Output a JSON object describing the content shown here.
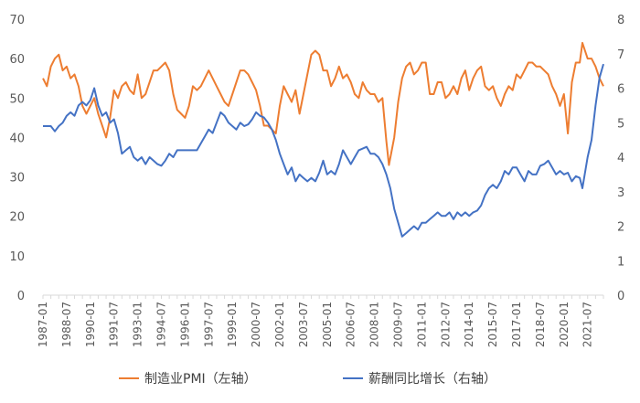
{
  "chart_data": {
    "type": "line",
    "xlabel": "",
    "ylabel_left": "",
    "ylabel_right": "",
    "x_tick_labels": [
      "1987-01",
      "1988-07",
      "1990-01",
      "1991-07",
      "1993-01",
      "1994-07",
      "1996-01",
      "1997-07",
      "1999-01",
      "2000-07",
      "2002-01",
      "2003-07",
      "2005-01",
      "2006-07",
      "2008-01",
      "2009-07",
      "2011-01",
      "2012-07",
      "2014-01",
      "2015-07",
      "2017-01",
      "2018-07",
      "2020-01",
      "2021-07"
    ],
    "y_left": {
      "min": 0,
      "max": 70,
      "ticks": [
        "0",
        "10",
        "20",
        "30",
        "40",
        "50",
        "60",
        "70"
      ]
    },
    "y_right": {
      "min": 0,
      "max": 8,
      "ticks": [
        "0",
        "1",
        "2",
        "3",
        "4",
        "5",
        "6",
        "7",
        "8"
      ]
    },
    "grid": false,
    "legend_position": "bottom",
    "series": [
      {
        "name": "制造业PMI（左轴）",
        "axis": "left",
        "color": "#ED7D31",
        "points": [
          [
            "1987-01",
            55
          ],
          [
            "1987-04",
            53
          ],
          [
            "1987-07",
            58
          ],
          [
            "1987-10",
            60
          ],
          [
            "1988-01",
            61
          ],
          [
            "1988-04",
            57
          ],
          [
            "1988-07",
            58
          ],
          [
            "1988-10",
            55
          ],
          [
            "1989-01",
            56
          ],
          [
            "1989-04",
            53
          ],
          [
            "1989-07",
            48
          ],
          [
            "1989-10",
            46
          ],
          [
            "1990-01",
            48
          ],
          [
            "1990-04",
            50
          ],
          [
            "1990-07",
            46
          ],
          [
            "1990-10",
            43
          ],
          [
            "1991-01",
            40
          ],
          [
            "1991-04",
            45
          ],
          [
            "1991-07",
            52
          ],
          [
            "1991-10",
            50
          ],
          [
            "1992-01",
            53
          ],
          [
            "1992-04",
            54
          ],
          [
            "1992-07",
            52
          ],
          [
            "1992-10",
            51
          ],
          [
            "1993-01",
            56
          ],
          [
            "1993-04",
            50
          ],
          [
            "1993-07",
            51
          ],
          [
            "1993-10",
            54
          ],
          [
            "1994-01",
            57
          ],
          [
            "1994-04",
            57
          ],
          [
            "1994-07",
            58
          ],
          [
            "1994-10",
            59
          ],
          [
            "1995-01",
            57
          ],
          [
            "1995-04",
            51
          ],
          [
            "1995-07",
            47
          ],
          [
            "1995-10",
            46
          ],
          [
            "1996-01",
            45
          ],
          [
            "1996-04",
            48
          ],
          [
            "1996-07",
            53
          ],
          [
            "1996-10",
            52
          ],
          [
            "1997-01",
            53
          ],
          [
            "1997-04",
            55
          ],
          [
            "1997-07",
            57
          ],
          [
            "1997-10",
            55
          ],
          [
            "1998-01",
            53
          ],
          [
            "1998-04",
            51
          ],
          [
            "1998-07",
            49
          ],
          [
            "1998-10",
            48
          ],
          [
            "1999-01",
            51
          ],
          [
            "1999-04",
            54
          ],
          [
            "1999-07",
            57
          ],
          [
            "1999-10",
            57
          ],
          [
            "2000-01",
            56
          ],
          [
            "2000-04",
            54
          ],
          [
            "2000-07",
            52
          ],
          [
            "2000-10",
            48
          ],
          [
            "2001-01",
            43
          ],
          [
            "2001-04",
            43
          ],
          [
            "2001-07",
            42
          ],
          [
            "2001-10",
            41
          ],
          [
            "2002-01",
            48
          ],
          [
            "2002-04",
            53
          ],
          [
            "2002-07",
            51
          ],
          [
            "2002-10",
            49
          ],
          [
            "2003-01",
            52
          ],
          [
            "2003-04",
            46
          ],
          [
            "2003-07",
            51
          ],
          [
            "2003-10",
            56
          ],
          [
            "2004-01",
            61
          ],
          [
            "2004-04",
            62
          ],
          [
            "2004-07",
            61
          ],
          [
            "2004-10",
            57
          ],
          [
            "2005-01",
            57
          ],
          [
            "2005-04",
            53
          ],
          [
            "2005-07",
            55
          ],
          [
            "2005-10",
            58
          ],
          [
            "2006-01",
            55
          ],
          [
            "2006-04",
            56
          ],
          [
            "2006-07",
            54
          ],
          [
            "2006-10",
            51
          ],
          [
            "2007-01",
            50
          ],
          [
            "2007-04",
            54
          ],
          [
            "2007-07",
            52
          ],
          [
            "2007-10",
            51
          ],
          [
            "2008-01",
            51
          ],
          [
            "2008-04",
            49
          ],
          [
            "2008-07",
            50
          ],
          [
            "2008-10",
            39
          ],
          [
            "2008-12",
            33
          ],
          [
            "2009-04",
            40
          ],
          [
            "2009-07",
            49
          ],
          [
            "2009-10",
            55
          ],
          [
            "2010-01",
            58
          ],
          [
            "2010-04",
            59
          ],
          [
            "2010-07",
            56
          ],
          [
            "2010-10",
            57
          ],
          [
            "2011-01",
            59
          ],
          [
            "2011-04",
            59
          ],
          [
            "2011-07",
            51
          ],
          [
            "2011-10",
            51
          ],
          [
            "2012-01",
            54
          ],
          [
            "2012-04",
            54
          ],
          [
            "2012-07",
            50
          ],
          [
            "2012-10",
            51
          ],
          [
            "2013-01",
            53
          ],
          [
            "2013-04",
            51
          ],
          [
            "2013-07",
            55
          ],
          [
            "2013-10",
            57
          ],
          [
            "2014-01",
            52
          ],
          [
            "2014-04",
            55
          ],
          [
            "2014-07",
            57
          ],
          [
            "2014-10",
            58
          ],
          [
            "2015-01",
            53
          ],
          [
            "2015-04",
            52
          ],
          [
            "2015-07",
            53
          ],
          [
            "2015-10",
            50
          ],
          [
            "2016-01",
            48
          ],
          [
            "2016-04",
            51
          ],
          [
            "2016-07",
            53
          ],
          [
            "2016-10",
            52
          ],
          [
            "2017-01",
            56
          ],
          [
            "2017-04",
            55
          ],
          [
            "2017-07",
            57
          ],
          [
            "2017-10",
            59
          ],
          [
            "2018-01",
            59
          ],
          [
            "2018-04",
            58
          ],
          [
            "2018-07",
            58
          ],
          [
            "2018-10",
            57
          ],
          [
            "2019-01",
            56
          ],
          [
            "2019-04",
            53
          ],
          [
            "2019-07",
            51
          ],
          [
            "2019-10",
            48
          ],
          [
            "2020-01",
            51
          ],
          [
            "2020-04",
            41
          ],
          [
            "2020-07",
            54
          ],
          [
            "2020-10",
            59
          ],
          [
            "2021-01",
            59
          ],
          [
            "2021-03",
            64
          ],
          [
            "2021-07",
            60
          ],
          [
            "2021-10",
            60
          ],
          [
            "2022-01",
            58
          ],
          [
            "2022-04",
            55
          ],
          [
            "2022-07",
            53
          ]
        ]
      },
      {
        "name": "薪酬同比增长（右轴）",
        "axis": "right",
        "color": "#4472C4",
        "points": [
          [
            "1987-01",
            4.9
          ],
          [
            "1987-04",
            4.9
          ],
          [
            "1987-07",
            4.9
          ],
          [
            "1987-10",
            4.75
          ],
          [
            "1988-01",
            4.9
          ],
          [
            "1988-04",
            5.0
          ],
          [
            "1988-07",
            5.2
          ],
          [
            "1988-10",
            5.3
          ],
          [
            "1989-01",
            5.2
          ],
          [
            "1989-04",
            5.5
          ],
          [
            "1989-07",
            5.6
          ],
          [
            "1989-10",
            5.5
          ],
          [
            "1990-01",
            5.65
          ],
          [
            "1990-04",
            6.0
          ],
          [
            "1990-07",
            5.5
          ],
          [
            "1990-10",
            5.2
          ],
          [
            "1991-01",
            5.3
          ],
          [
            "1991-04",
            5.0
          ],
          [
            "1991-07",
            5.1
          ],
          [
            "1991-10",
            4.7
          ],
          [
            "1992-01",
            4.1
          ],
          [
            "1992-04",
            4.2
          ],
          [
            "1992-07",
            4.3
          ],
          [
            "1992-10",
            4.0
          ],
          [
            "1993-01",
            3.9
          ],
          [
            "1993-04",
            4.0
          ],
          [
            "1993-07",
            3.8
          ],
          [
            "1993-10",
            4.0
          ],
          [
            "1994-01",
            3.9
          ],
          [
            "1994-04",
            3.8
          ],
          [
            "1994-07",
            3.75
          ],
          [
            "1994-10",
            3.9
          ],
          [
            "1995-01",
            4.1
          ],
          [
            "1995-04",
            4.0
          ],
          [
            "1995-07",
            4.2
          ],
          [
            "1995-10",
            4.2
          ],
          [
            "1996-01",
            4.2
          ],
          [
            "1996-04",
            4.2
          ],
          [
            "1996-07",
            4.2
          ],
          [
            "1996-10",
            4.2
          ],
          [
            "1997-01",
            4.4
          ],
          [
            "1997-04",
            4.6
          ],
          [
            "1997-07",
            4.8
          ],
          [
            "1997-10",
            4.7
          ],
          [
            "1998-01",
            5.0
          ],
          [
            "1998-04",
            5.3
          ],
          [
            "1998-07",
            5.2
          ],
          [
            "1998-10",
            5.0
          ],
          [
            "1999-01",
            4.9
          ],
          [
            "1999-04",
            4.8
          ],
          [
            "1999-07",
            5.0
          ],
          [
            "1999-10",
            4.9
          ],
          [
            "2000-01",
            4.95
          ],
          [
            "2000-04",
            5.1
          ],
          [
            "2000-07",
            5.3
          ],
          [
            "2000-10",
            5.2
          ],
          [
            "2001-01",
            5.15
          ],
          [
            "2001-04",
            5.0
          ],
          [
            "2001-07",
            4.8
          ],
          [
            "2001-10",
            4.5
          ],
          [
            "2002-01",
            4.1
          ],
          [
            "2002-04",
            3.8
          ],
          [
            "2002-07",
            3.5
          ],
          [
            "2002-10",
            3.7
          ],
          [
            "2003-01",
            3.3
          ],
          [
            "2003-04",
            3.5
          ],
          [
            "2003-07",
            3.4
          ],
          [
            "2003-10",
            3.3
          ],
          [
            "2004-01",
            3.4
          ],
          [
            "2004-04",
            3.3
          ],
          [
            "2004-07",
            3.55
          ],
          [
            "2004-10",
            3.9
          ],
          [
            "2005-01",
            3.5
          ],
          [
            "2005-04",
            3.6
          ],
          [
            "2005-07",
            3.5
          ],
          [
            "2005-10",
            3.8
          ],
          [
            "2006-01",
            4.2
          ],
          [
            "2006-04",
            4.0
          ],
          [
            "2006-07",
            3.8
          ],
          [
            "2006-10",
            4.0
          ],
          [
            "2007-01",
            4.2
          ],
          [
            "2007-04",
            4.25
          ],
          [
            "2007-07",
            4.3
          ],
          [
            "2007-10",
            4.1
          ],
          [
            "2008-01",
            4.1
          ],
          [
            "2008-04",
            4.0
          ],
          [
            "2008-07",
            3.8
          ],
          [
            "2008-10",
            3.5
          ],
          [
            "2009-01",
            3.1
          ],
          [
            "2009-04",
            2.5
          ],
          [
            "2009-07",
            2.1
          ],
          [
            "2009-10",
            1.7
          ],
          [
            "2010-01",
            1.8
          ],
          [
            "2010-04",
            1.9
          ],
          [
            "2010-07",
            2.0
          ],
          [
            "2010-10",
            1.9
          ],
          [
            "2011-01",
            2.1
          ],
          [
            "2011-04",
            2.1
          ],
          [
            "2011-07",
            2.2
          ],
          [
            "2011-10",
            2.3
          ],
          [
            "2012-01",
            2.4
          ],
          [
            "2012-04",
            2.3
          ],
          [
            "2012-07",
            2.3
          ],
          [
            "2012-10",
            2.4
          ],
          [
            "2013-01",
            2.2
          ],
          [
            "2013-04",
            2.4
          ],
          [
            "2013-07",
            2.3
          ],
          [
            "2013-10",
            2.4
          ],
          [
            "2014-01",
            2.3
          ],
          [
            "2014-04",
            2.4
          ],
          [
            "2014-07",
            2.45
          ],
          [
            "2014-10",
            2.6
          ],
          [
            "2015-01",
            2.9
          ],
          [
            "2015-04",
            3.1
          ],
          [
            "2015-07",
            3.2
          ],
          [
            "2015-10",
            3.1
          ],
          [
            "2016-01",
            3.3
          ],
          [
            "2016-04",
            3.6
          ],
          [
            "2016-07",
            3.5
          ],
          [
            "2016-10",
            3.7
          ],
          [
            "2017-01",
            3.7
          ],
          [
            "2017-04",
            3.5
          ],
          [
            "2017-07",
            3.3
          ],
          [
            "2017-10",
            3.6
          ],
          [
            "2018-01",
            3.5
          ],
          [
            "2018-04",
            3.5
          ],
          [
            "2018-07",
            3.75
          ],
          [
            "2018-10",
            3.8
          ],
          [
            "2019-01",
            3.9
          ],
          [
            "2019-04",
            3.7
          ],
          [
            "2019-07",
            3.5
          ],
          [
            "2019-10",
            3.6
          ],
          [
            "2020-01",
            3.5
          ],
          [
            "2020-04",
            3.55
          ],
          [
            "2020-07",
            3.3
          ],
          [
            "2020-10",
            3.45
          ],
          [
            "2021-01",
            3.4
          ],
          [
            "2021-03",
            3.1
          ],
          [
            "2021-07",
            4.0
          ],
          [
            "2021-10",
            4.5
          ],
          [
            "2022-01",
            5.5
          ],
          [
            "2022-04",
            6.3
          ],
          [
            "2022-07",
            6.7
          ]
        ]
      }
    ]
  }
}
